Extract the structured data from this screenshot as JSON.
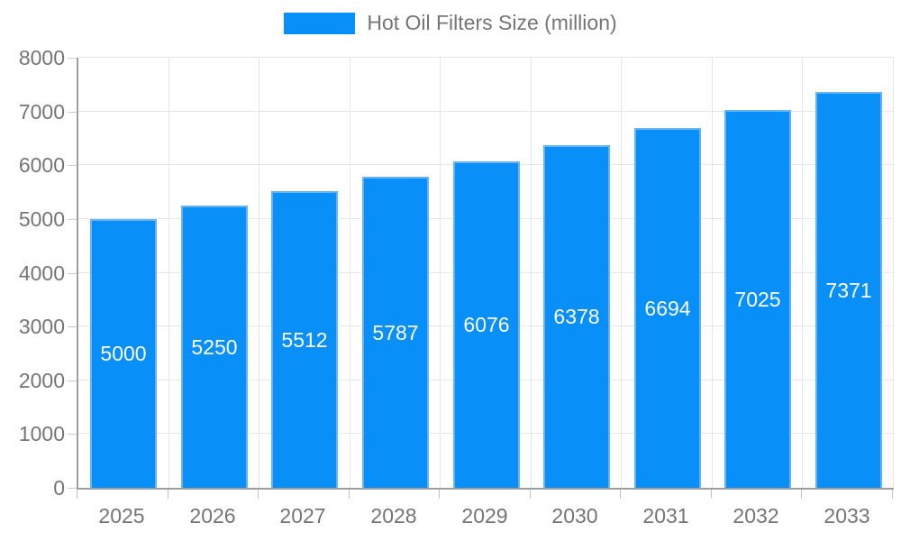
{
  "legend": {
    "position": "top",
    "label": "Hot Oil Filters Size (million)"
  },
  "chart_data": {
    "type": "bar",
    "title": "Hot Oil Filters Size (million)",
    "categories": [
      "2025",
      "2026",
      "2027",
      "2028",
      "2029",
      "2030",
      "2031",
      "2032",
      "2033"
    ],
    "values": [
      5000,
      5250,
      5512,
      5787,
      6076,
      6378,
      6694,
      7025,
      7371
    ],
    "xlabel": "",
    "ylabel": "",
    "ylim": [
      0,
      8000
    ],
    "ytick_step": 1000,
    "ytick_labels": [
      "0",
      "1000",
      "2000",
      "3000",
      "4000",
      "5000",
      "6000",
      "7000",
      "8000"
    ],
    "grid": true,
    "value_labels_shown": true,
    "value_label_position": "center-of-bar",
    "legend_position": "top-center",
    "colors": {
      "bar_fill": "#0890f8",
      "bar_border": "#66b2f5",
      "gridline": "#e6e6e6",
      "axis_line": "#9e9e9e",
      "tick_label": "#757575",
      "value_label": "#ffffff",
      "background": "#ffffff"
    }
  }
}
